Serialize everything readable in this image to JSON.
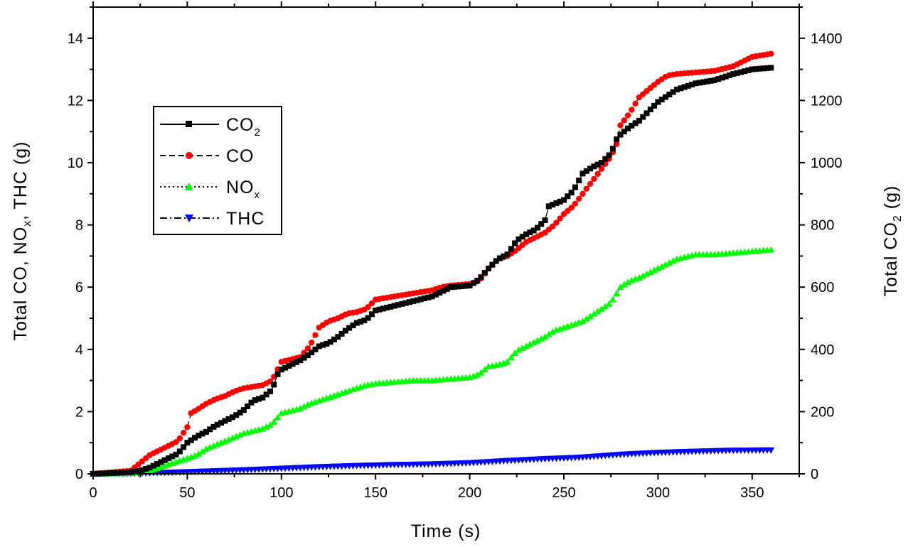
{
  "chart_data": {
    "type": "line",
    "xlabel": "Time (s)",
    "ylabel": {
      "base": "Total CO, NO",
      "sub": "x",
      "tail": ", THC (g)"
    },
    "ylabel_right": {
      "base": "Total CO",
      "sub": "2",
      "tail": " (g)"
    },
    "xlim": [
      0,
      375
    ],
    "ylim": [
      0,
      15
    ],
    "ylim_right": [
      0,
      1500
    ],
    "x_ticks": [
      "0",
      "50",
      "100",
      "150",
      "200",
      "250",
      "300",
      "350"
    ],
    "y_ticks": [
      "0",
      "2",
      "4",
      "6",
      "8",
      "10",
      "12",
      "14"
    ],
    "y_right_ticks": [
      "0",
      "200",
      "400",
      "600",
      "800",
      "1000",
      "1200",
      "1400"
    ],
    "grid": false,
    "legend_position": "upper-left",
    "series": [
      {
        "name": {
          "base": "CO",
          "sub": "2"
        },
        "axis": "right",
        "line": "solid",
        "marker": "square",
        "color": "#000000",
        "x": [
          0,
          20,
          25,
          30,
          35,
          40,
          45,
          50,
          55,
          60,
          65,
          70,
          75,
          80,
          85,
          90,
          95,
          98,
          100,
          110,
          115,
          120,
          125,
          130,
          135,
          140,
          145,
          150,
          160,
          170,
          180,
          185,
          190,
          200,
          205,
          210,
          215,
          220,
          225,
          230,
          235,
          240,
          242,
          250,
          255,
          260,
          265,
          270,
          275,
          278,
          280,
          285,
          290,
          295,
          300,
          305,
          310,
          320,
          330,
          340,
          350,
          360
        ],
        "y": [
          0,
          5,
          10,
          20,
          35,
          50,
          65,
          100,
          120,
          135,
          155,
          170,
          185,
          205,
          235,
          245,
          270,
          320,
          335,
          365,
          385,
          410,
          420,
          440,
          465,
          485,
          495,
          525,
          540,
          555,
          570,
          585,
          600,
          605,
          625,
          660,
          690,
          705,
          750,
          770,
          785,
          815,
          860,
          880,
          910,
          965,
          985,
          1000,
          1030,
          1075,
          1090,
          1115,
          1135,
          1165,
          1195,
          1215,
          1235,
          1255,
          1265,
          1285,
          1300,
          1305
        ]
      },
      {
        "name": {
          "base": "CO",
          "sub": ""
        },
        "axis": "left",
        "line": "dashed",
        "marker": "circle",
        "color": "#ff0000",
        "x": [
          0,
          20,
          25,
          30,
          35,
          40,
          45,
          50,
          52,
          55,
          60,
          65,
          70,
          75,
          80,
          85,
          90,
          95,
          100,
          110,
          115,
          120,
          125,
          130,
          135,
          140,
          145,
          150,
          160,
          170,
          180,
          185,
          190,
          200,
          205,
          210,
          215,
          220,
          225,
          230,
          235,
          240,
          245,
          250,
          255,
          260,
          265,
          270,
          275,
          278,
          280,
          285,
          290,
          295,
          300,
          305,
          310,
          320,
          330,
          340,
          350,
          360
        ],
        "y": [
          0,
          0.1,
          0.35,
          0.6,
          0.75,
          0.9,
          1.05,
          1.5,
          1.95,
          2.05,
          2.25,
          2.4,
          2.5,
          2.65,
          2.75,
          2.8,
          2.85,
          3.0,
          3.6,
          3.75,
          4.1,
          4.7,
          4.9,
          5.0,
          5.15,
          5.2,
          5.3,
          5.6,
          5.7,
          5.8,
          5.9,
          6.0,
          6.05,
          6.1,
          6.2,
          6.6,
          6.9,
          7.0,
          7.2,
          7.45,
          7.6,
          7.75,
          8.0,
          8.35,
          8.6,
          9.0,
          9.4,
          9.8,
          10.2,
          10.6,
          11.2,
          11.6,
          12.1,
          12.35,
          12.6,
          12.8,
          12.85,
          12.9,
          12.95,
          13.1,
          13.4,
          13.5
        ]
      },
      {
        "name": {
          "base": "NO",
          "sub": "x"
        },
        "axis": "left",
        "line": "dotted",
        "marker": "triangle-up",
        "color": "#00ff00",
        "x": [
          0,
          20,
          30,
          40,
          50,
          55,
          60,
          70,
          80,
          90,
          95,
          100,
          110,
          115,
          120,
          130,
          140,
          145,
          150,
          160,
          170,
          180,
          190,
          200,
          205,
          210,
          215,
          220,
          225,
          230,
          240,
          245,
          250,
          260,
          270,
          275,
          280,
          285,
          290,
          300,
          310,
          320,
          330,
          340,
          350,
          360
        ],
        "y": [
          0,
          0.02,
          0.1,
          0.3,
          0.5,
          0.6,
          0.8,
          1.05,
          1.3,
          1.45,
          1.6,
          1.95,
          2.1,
          2.25,
          2.35,
          2.55,
          2.75,
          2.85,
          2.9,
          2.95,
          3.0,
          3.0,
          3.05,
          3.1,
          3.2,
          3.45,
          3.5,
          3.6,
          3.95,
          4.1,
          4.4,
          4.6,
          4.7,
          4.9,
          5.3,
          5.5,
          6.0,
          6.2,
          6.3,
          6.6,
          6.9,
          7.05,
          7.05,
          7.1,
          7.15,
          7.2
        ]
      },
      {
        "name": {
          "base": "THC",
          "sub": ""
        },
        "axis": "left",
        "line": "dash-dot",
        "marker": "triangle-down",
        "color": "#0000ff",
        "x": [
          0,
          20,
          40,
          60,
          80,
          100,
          120,
          140,
          160,
          180,
          200,
          220,
          240,
          260,
          280,
          300,
          320,
          340,
          360
        ],
        "y": [
          0,
          0.01,
          0.04,
          0.08,
          0.12,
          0.17,
          0.22,
          0.26,
          0.29,
          0.31,
          0.35,
          0.42,
          0.48,
          0.53,
          0.62,
          0.68,
          0.72,
          0.75,
          0.76
        ]
      }
    ]
  }
}
